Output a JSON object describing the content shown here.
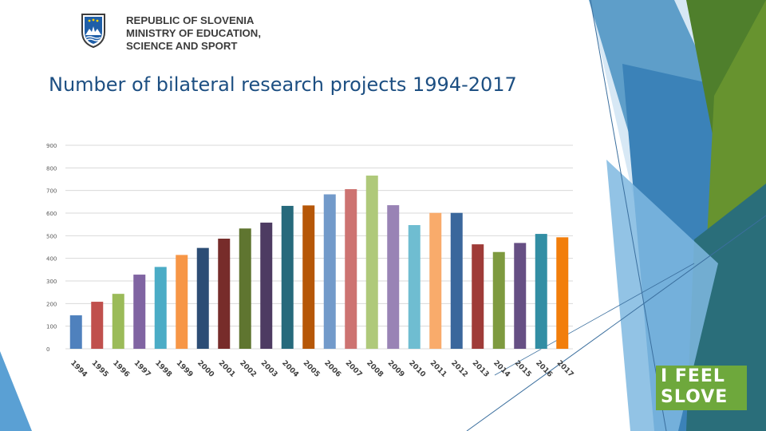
{
  "header": {
    "ministry_lines": [
      "REPUBLIC OF SLOVENIA",
      "MINISTRY OF EDUCATION,",
      "SCIENCE AND SPORT"
    ]
  },
  "slide": {
    "title": "Number of bilateral research projects 1994-2017"
  },
  "badge": {
    "line1": "I FEEL",
    "line2": "SLOVE"
  },
  "chart_data": {
    "type": "bar",
    "title": "",
    "xlabel": "",
    "ylabel": "",
    "ylim": [
      0,
      900
    ],
    "yticks": [
      0,
      100,
      200,
      300,
      400,
      500,
      600,
      700,
      800,
      900
    ],
    "grid": true,
    "legend": "none",
    "categories": [
      "1994",
      "1995",
      "1996",
      "1997",
      "1998",
      "1999",
      "2000",
      "2001",
      "2002",
      "2003",
      "2004",
      "2005",
      "2006",
      "2007",
      "2008",
      "2009",
      "2010",
      "2011",
      "2012",
      "2013",
      "2014",
      "2015",
      "2016",
      "2017"
    ],
    "values": [
      148,
      208,
      243,
      328,
      362,
      415,
      446,
      487,
      532,
      558,
      632,
      634,
      683,
      706,
      766,
      635,
      547,
      601,
      601,
      462,
      428,
      468,
      508,
      493
    ],
    "colors": [
      "#4f81bd",
      "#c0504d",
      "#9bbb59",
      "#8064a2",
      "#4bacc6",
      "#f79646",
      "#2c4d75",
      "#772c2a",
      "#5f7530",
      "#4d3b62",
      "#276a7c",
      "#b65708",
      "#729aca",
      "#cd7371",
      "#afc97a",
      "#9983b5",
      "#6fbdd1",
      "#f9ab6b",
      "#3a679c",
      "#9f3b38",
      "#7e9a3f",
      "#664f84",
      "#328ea4",
      "#f27e0b"
    ]
  }
}
